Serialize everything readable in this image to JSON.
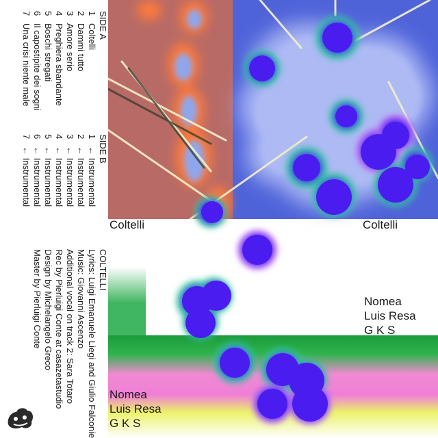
{
  "side_a": {
    "heading": "SIDE A",
    "tracks": [
      {
        "num": "1",
        "title": "Coltelli"
      },
      {
        "num": "2",
        "title": "Dammi tutto"
      },
      {
        "num": "3",
        "title": "Amore serio"
      },
      {
        "num": "4",
        "title": "Preghiera sbandante"
      },
      {
        "num": "5",
        "title": "Boschi stregati"
      },
      {
        "num": "6",
        "title": "Il capostipite dei sogni"
      },
      {
        "num": "7",
        "title": "Una crisi niente male"
      }
    ]
  },
  "side_b": {
    "heading": "SIDE B",
    "tracks": [
      {
        "num": "1",
        "title": "← Instrumental"
      },
      {
        "num": "2",
        "title": "← Instrumental"
      },
      {
        "num": "3",
        "title": "← Instrumental"
      },
      {
        "num": "4",
        "title": "← Instrumental"
      },
      {
        "num": "5",
        "title": "← Instrumental"
      },
      {
        "num": "6",
        "title": "← Instrumental"
      },
      {
        "num": "7",
        "title": "← Instrumental"
      }
    ]
  },
  "credits": {
    "heading": "COLTELLI",
    "lines": [
      "Lyrics: Luigi Emanuele Liegi and Giulio Falconieri",
      "Music: Giovanni Ascenzo",
      "Additional vocal on track 2: Sara Totaro",
      "Rec by Pierluigi Conte at casazetastudio",
      "Design by Michelangelo Greco",
      "Master by Pierluigi Conte"
    ]
  },
  "art": {
    "title_left": "Coltelli",
    "title_right": "Coltelli",
    "artists_right": [
      "Nomea",
      "Luis Resa",
      "G K S"
    ],
    "artists_bottom": [
      "Nomea",
      "Luis Resa",
      "G K S"
    ]
  },
  "colors": {
    "text": "#1a1a1a",
    "dot_violet": "#4a1cf0",
    "salmon_panel": "#b86a66",
    "blue_panel": "#4f63d9",
    "blob_lavender": "#9aaaf0",
    "green_band": "#1fa845",
    "pink_band": "#f07ad0",
    "yellow_band": "#e8f25a"
  }
}
